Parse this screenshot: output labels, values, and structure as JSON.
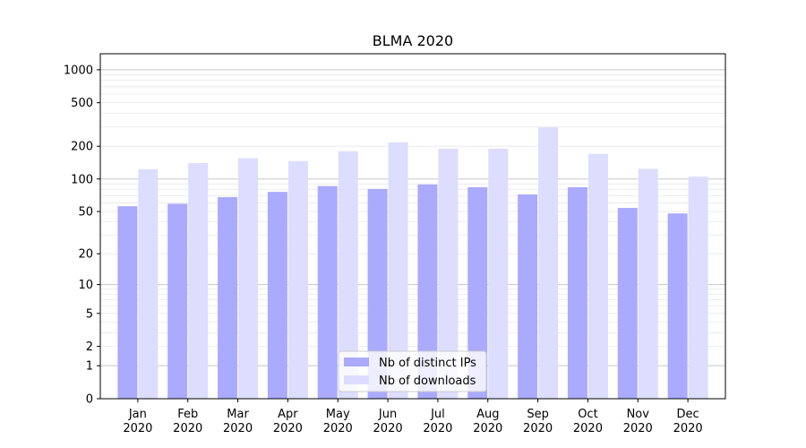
{
  "chart_data": {
    "type": "bar",
    "title": "BLMA 2020",
    "xlabel": "",
    "ylabel": "",
    "y_scale": "symlog",
    "ylim": [
      0,
      1400
    ],
    "y_ticks": [
      0,
      1,
      2,
      5,
      10,
      20,
      50,
      100,
      200,
      500,
      1000
    ],
    "grid": true,
    "legend_position": "bottom-center",
    "categories": [
      [
        "Jan",
        "2020"
      ],
      [
        "Feb",
        "2020"
      ],
      [
        "Mar",
        "2020"
      ],
      [
        "Apr",
        "2020"
      ],
      [
        "May",
        "2020"
      ],
      [
        "Jun",
        "2020"
      ],
      [
        "Jul",
        "2020"
      ],
      [
        "Aug",
        "2020"
      ],
      [
        "Sep",
        "2020"
      ],
      [
        "Oct",
        "2020"
      ],
      [
        "Nov",
        "2020"
      ],
      [
        "Dec",
        "2020"
      ]
    ],
    "series": [
      {
        "name": "Nb of distinct IPs",
        "color": "#aaaaff",
        "values": [
          56,
          59,
          68,
          76,
          86,
          81,
          89,
          84,
          72,
          84,
          54,
          48
        ]
      },
      {
        "name": "Nb of downloads",
        "color": "#ddddff",
        "values": [
          123,
          140,
          155,
          146,
          180,
          217,
          190,
          190,
          298,
          170,
          124,
          105
        ]
      }
    ]
  }
}
